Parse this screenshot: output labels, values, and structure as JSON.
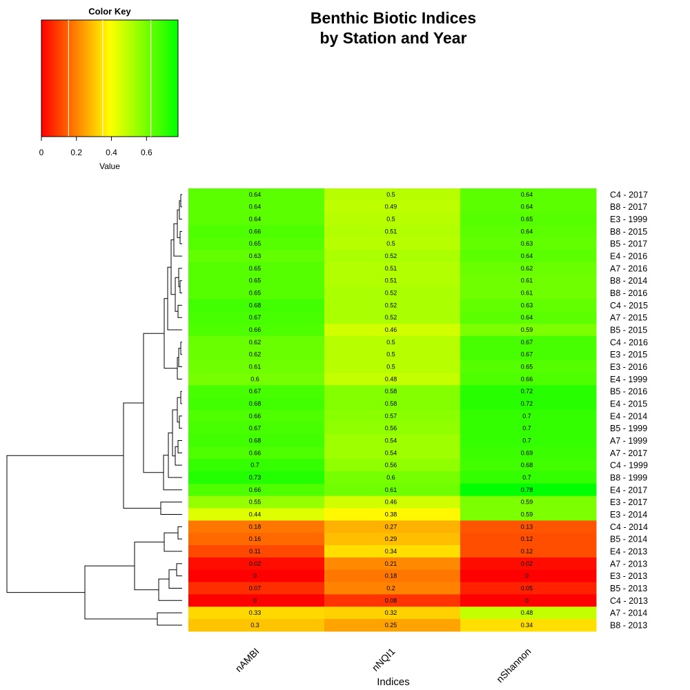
{
  "title_lines": [
    "Benthic Biotic Indices",
    "by Station and Year"
  ],
  "color_key": {
    "title": "Color Key",
    "xlabel": "Value",
    "ticks": [
      "0",
      "0.2",
      "0.4",
      "0.6"
    ],
    "tick_values": [
      0,
      0.2,
      0.4,
      0.6
    ],
    "range": [
      0,
      0.78
    ],
    "break_values": [
      0.155,
      0.35,
      0.625
    ],
    "colors": [
      "#ff0000",
      "#ffff00",
      "#00ff00"
    ]
  },
  "chart_data": {
    "type": "heatmap",
    "title": "Benthic Biotic Indices\nby Station and Year",
    "xlabel": "Indices",
    "ylabel": "",
    "columns": [
      "nAMBI",
      "nNQI1",
      "nShannon"
    ],
    "rows": [
      "C4 - 2017",
      "B8 - 2017",
      "E3 - 1999",
      "B8 - 2015",
      "B5 - 2017",
      "E4 - 2016",
      "A7 - 2016",
      "B8 - 2014",
      "B8 - 2016",
      "C4 - 2015",
      "A7 - 2015",
      "B5 - 2015",
      "C4 - 2016",
      "E3 - 2015",
      "E3 - 2016",
      "E4 - 1999",
      "B5 - 2016",
      "E4 - 2015",
      "E4 - 2014",
      "B5 - 1999",
      "A7 - 1999",
      "A7 - 2017",
      "C4 - 1999",
      "B8 - 1999",
      "E4 - 2017",
      "E3 - 2017",
      "E3 - 2014",
      "C4 - 2014",
      "B5 - 2014",
      "E4 - 2013",
      "A7 - 2013",
      "E3 - 2013",
      "B5 - 2013",
      "C4 - 2013",
      "A7 - 2014",
      "B8 - 2013"
    ],
    "values": [
      [
        0.64,
        0.5,
        0.64
      ],
      [
        0.64,
        0.49,
        0.64
      ],
      [
        0.64,
        0.5,
        0.65
      ],
      [
        0.66,
        0.51,
        0.64
      ],
      [
        0.65,
        0.5,
        0.63
      ],
      [
        0.63,
        0.52,
        0.64
      ],
      [
        0.65,
        0.51,
        0.62
      ],
      [
        0.65,
        0.51,
        0.61
      ],
      [
        0.65,
        0.52,
        0.61
      ],
      [
        0.68,
        0.52,
        0.63
      ],
      [
        0.67,
        0.52,
        0.64
      ],
      [
        0.66,
        0.46,
        0.59
      ],
      [
        0.62,
        0.5,
        0.67
      ],
      [
        0.62,
        0.5,
        0.67
      ],
      [
        0.61,
        0.5,
        0.65
      ],
      [
        0.6,
        0.48,
        0.66
      ],
      [
        0.67,
        0.58,
        0.72
      ],
      [
        0.68,
        0.58,
        0.72
      ],
      [
        0.66,
        0.57,
        0.7
      ],
      [
        0.67,
        0.56,
        0.7
      ],
      [
        0.68,
        0.54,
        0.7
      ],
      [
        0.66,
        0.54,
        0.69
      ],
      [
        0.7,
        0.56,
        0.68
      ],
      [
        0.73,
        0.6,
        0.7
      ],
      [
        0.66,
        0.61,
        0.78
      ],
      [
        0.55,
        0.46,
        0.59
      ],
      [
        0.44,
        0.38,
        0.59
      ],
      [
        0.18,
        0.27,
        0.13
      ],
      [
        0.16,
        0.29,
        0.12
      ],
      [
        0.11,
        0.34,
        0.12
      ],
      [
        0.02,
        0.21,
        0.02
      ],
      [
        0,
        0.18,
        0
      ],
      [
        0.07,
        0.2,
        0.05
      ],
      [
        0,
        0.08,
        0
      ],
      [
        0.33,
        0.32,
        0.48
      ],
      [
        0.3,
        0.25,
        0.34
      ]
    ],
    "color_scale": {
      "min": 0,
      "max": 0.78,
      "low": "#ff0000",
      "mid": "#ffff00",
      "high": "#00ff00"
    },
    "row_dendrogram": true
  }
}
